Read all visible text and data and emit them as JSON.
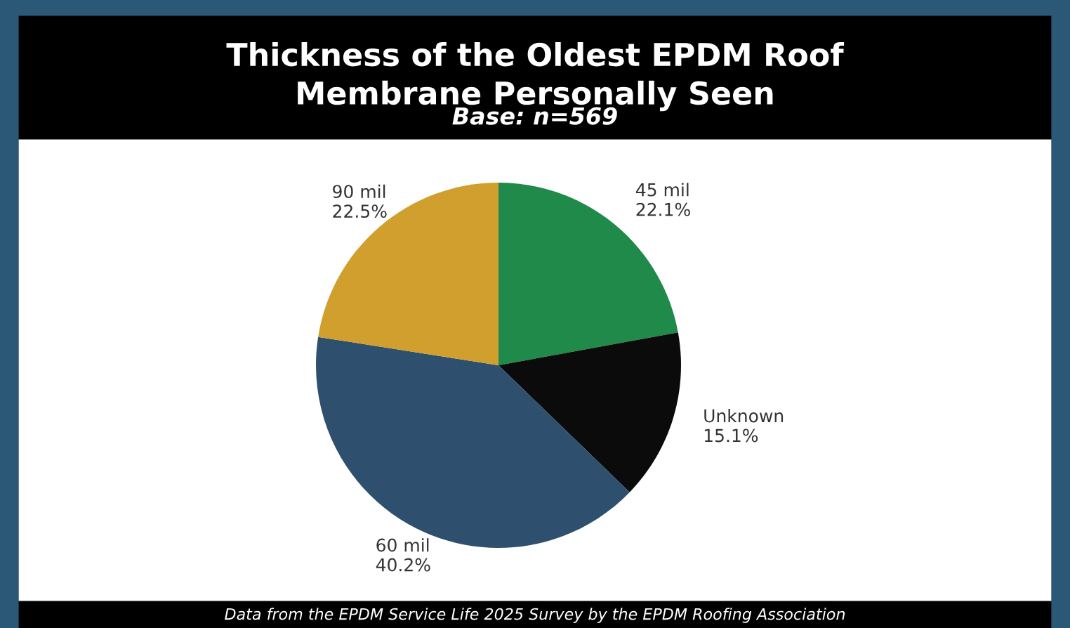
{
  "chart_data": {
    "type": "pie",
    "title": "Thickness of the Oldest EPDM Roof\nMembrane Personally Seen",
    "subtitle": "Base: n=569",
    "categories": [
      "45 mil",
      "Unknown",
      "60 mil",
      "90 mil"
    ],
    "values": [
      22.1,
      15.1,
      40.2,
      22.5
    ],
    "value_labels": [
      "22.1%",
      "15.1%",
      "40.2%",
      "22.5%"
    ],
    "colors": [
      "#1f8a4a",
      "#0b0b0b",
      "#2e4f6d",
      "#d19f2e"
    ],
    "legend": false,
    "annotations": [
      "Data from the EPDM Service Life 2025 Survey by the EPDM Roofing Association"
    ]
  }
}
